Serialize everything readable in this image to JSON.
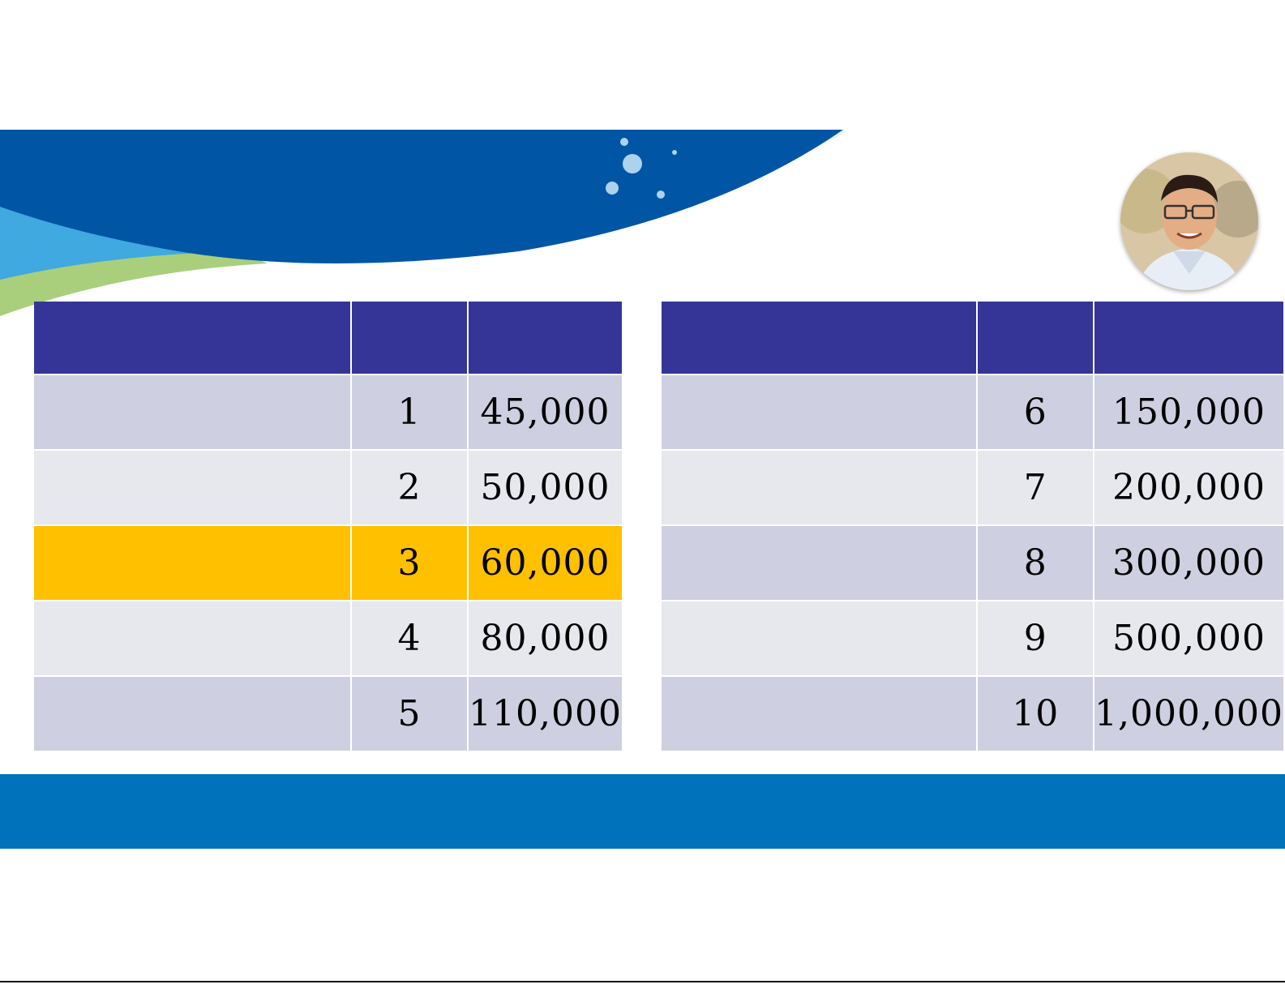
{
  "colors": {
    "header": "#353598",
    "row_dark": "#cecfe0",
    "row_light": "#e7e8ee",
    "highlight": "#ffc000",
    "banner_blue": "#0055a5",
    "footer_blue": "#0072bc"
  },
  "presenter_photo": {
    "icon": "person-portrait-icon"
  },
  "tables": {
    "left": {
      "rows": [
        {
          "level": "1",
          "amount": "45,000"
        },
        {
          "level": "2",
          "amount": "50,000"
        },
        {
          "level": "3",
          "amount": "60,000",
          "highlighted": true
        },
        {
          "level": "4",
          "amount": "80,000"
        },
        {
          "level": "5",
          "amount": "110,000"
        }
      ]
    },
    "right": {
      "rows": [
        {
          "level": "6",
          "amount": "150,000"
        },
        {
          "level": "7",
          "amount": "200,000"
        },
        {
          "level": "8",
          "amount": "300,000"
        },
        {
          "level": "9",
          "amount": "500,000"
        },
        {
          "level": "10",
          "amount": "1,000,000"
        }
      ]
    }
  }
}
